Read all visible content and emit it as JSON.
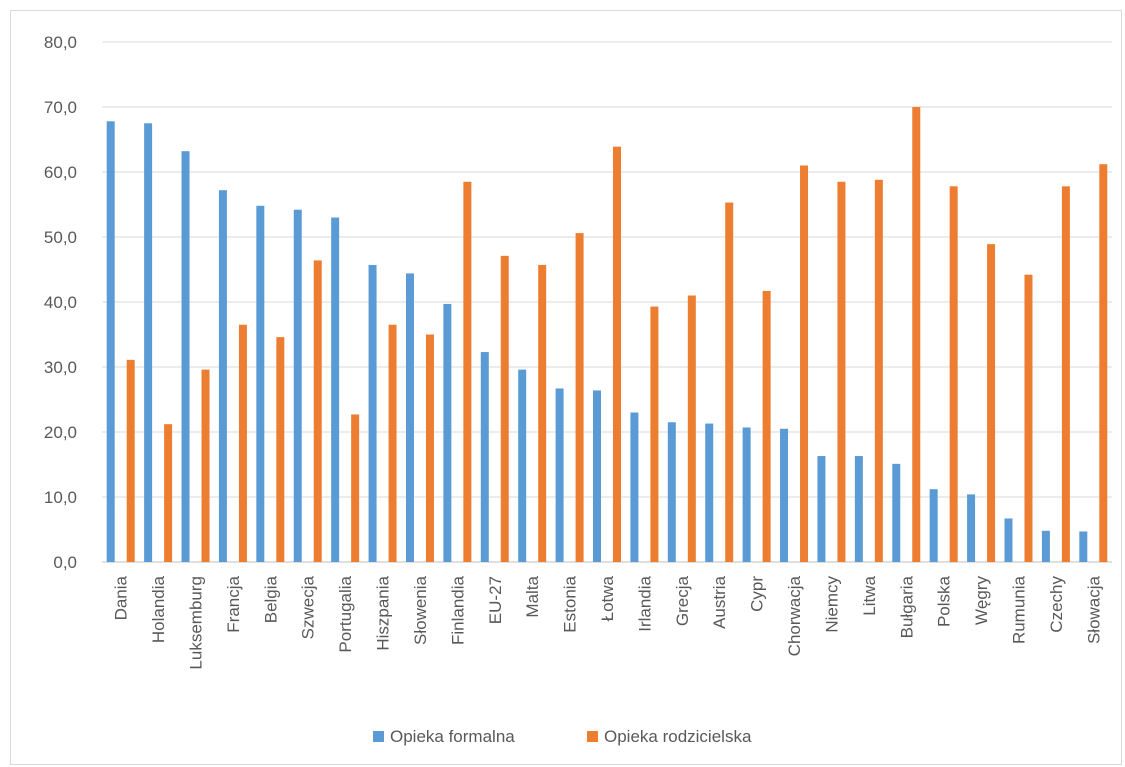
{
  "chart_data": {
    "type": "bar",
    "title": "",
    "xlabel": "",
    "ylabel": "",
    "ylim": [
      0,
      80
    ],
    "yticks": [
      "0,0",
      "10,0",
      "20,0",
      "30,0",
      "40,0",
      "50,0",
      "60,0",
      "70,0",
      "80,0"
    ],
    "grid": true,
    "legend_position": "bottom",
    "categories": [
      "Dania",
      "Holandia",
      "Luksemburg",
      "Francja",
      "Belgia",
      "Szwecja",
      "Portugalia",
      "Hiszpania",
      "Słowenia",
      "Finlandia",
      "EU-27",
      "Malta",
      "Estonia",
      "Łotwa",
      "Irlandia",
      "Grecja",
      "Austria",
      "Cypr",
      "Chorwacja",
      "Niemcy",
      "Litwa",
      "Bułgaria",
      "Polska",
      "Węgry",
      "Rumunia",
      "Czechy",
      "Słowacja"
    ],
    "series": [
      {
        "name": "Opieka formalna",
        "color": "#5b9bd5",
        "values": [
          67.8,
          67.5,
          63.2,
          57.2,
          54.8,
          54.2,
          53.0,
          45.7,
          44.4,
          39.7,
          32.3,
          29.6,
          26.7,
          26.4,
          23.0,
          21.5,
          21.3,
          20.7,
          20.5,
          16.3,
          16.3,
          15.1,
          11.2,
          10.4,
          6.7,
          4.8,
          4.7
        ]
      },
      {
        "name": "Opieka rodzicielska",
        "color": "#ed7d31",
        "values": [
          31.1,
          21.2,
          29.6,
          36.5,
          34.6,
          46.4,
          22.7,
          36.5,
          35.0,
          58.5,
          47.1,
          45.7,
          50.6,
          63.9,
          39.3,
          41.0,
          55.3,
          41.7,
          61.0,
          58.5,
          58.8,
          70.0,
          57.8,
          48.9,
          44.2,
          57.8,
          61.2
        ]
      }
    ]
  }
}
